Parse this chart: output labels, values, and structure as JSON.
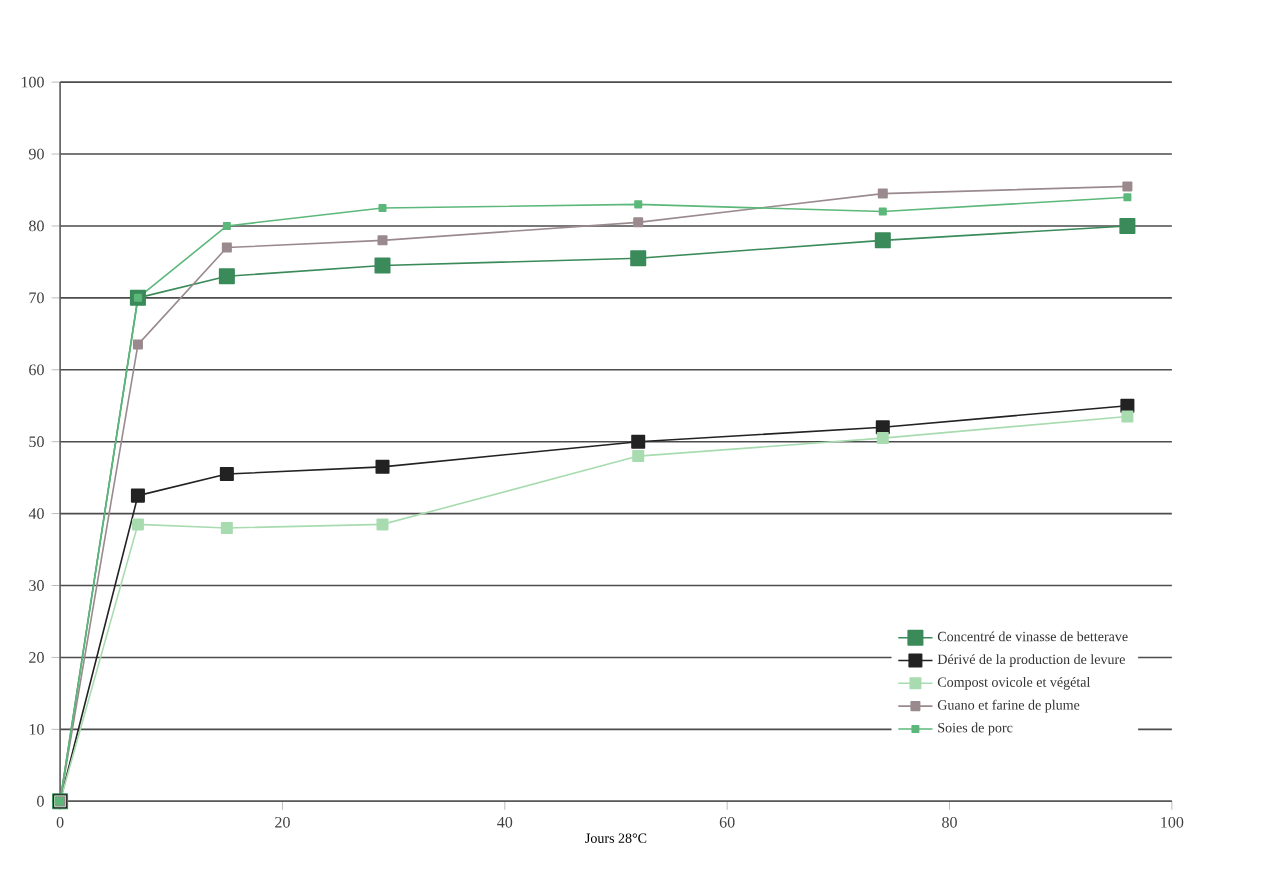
{
  "chart_data": {
    "type": "line",
    "xlabel": "Jours 28°C",
    "x": [
      0,
      7,
      15,
      29,
      52,
      74,
      96
    ],
    "series": [
      {
        "name": "Concentré de vinasse de betterave",
        "color": "#3a8a5a",
        "values": [
          0,
          70,
          73,
          74.5,
          75.5,
          78,
          80
        ]
      },
      {
        "name": "Dérivé de la production de levure",
        "color": "#222222",
        "values": [
          0,
          42.5,
          45.5,
          46.5,
          50,
          52,
          55
        ]
      },
      {
        "name": "Compost ovicole et végétal",
        "color": "#a8dcb0",
        "values": [
          0,
          38.5,
          38,
          38.5,
          48,
          50.5,
          53.5
        ]
      },
      {
        "name": "Guano et farine de plume",
        "color": "#9a8a8e",
        "values": [
          0,
          63.5,
          77,
          78,
          80.5,
          84.5,
          85.5
        ]
      },
      {
        "name": "Soies de porc",
        "color": "#5cb87a",
        "values": [
          0,
          70,
          80,
          82.5,
          83,
          82,
          84
        ]
      }
    ],
    "xlim": [
      0,
      100
    ],
    "ylim": [
      0,
      100
    ],
    "xticks": [
      0,
      20,
      40,
      60,
      80,
      100
    ],
    "yticks": [
      0,
      10,
      20,
      30,
      40,
      50,
      60,
      70,
      80,
      90,
      100
    ],
    "grid": "y",
    "legend": "bottom right",
    "marker": "square",
    "line_style": "solid"
  }
}
